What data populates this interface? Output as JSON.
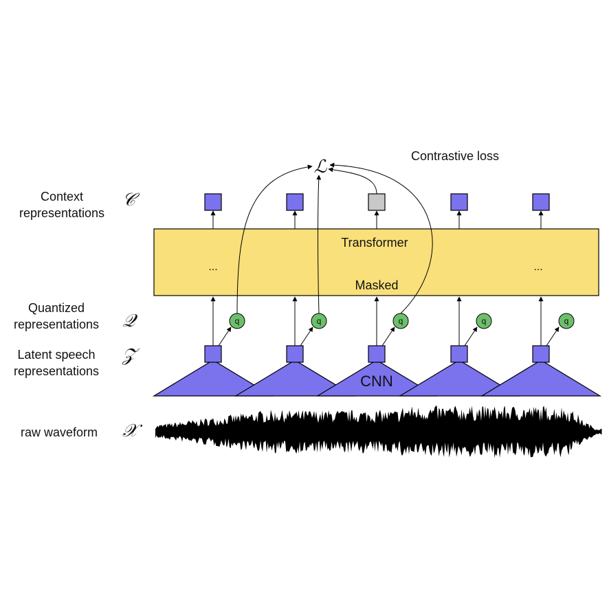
{
  "rows": {
    "context": {
      "label_line1": "Context",
      "label_line2": "representations",
      "symbol": "𝒞"
    },
    "quantized": {
      "label_line1": "Quantized",
      "label_line2": "representations",
      "symbol": "𝒬"
    },
    "latent": {
      "label_line1": "Latent speech",
      "label_line2": "representations",
      "symbol": "𝒵"
    },
    "raw": {
      "label": "raw waveform",
      "symbol": "𝒳"
    }
  },
  "loss": {
    "symbol": "ℒ",
    "label": "Contrastive loss"
  },
  "transformer": {
    "title": "Transformer",
    "masked": "Masked",
    "ellipsis_left": "...",
    "ellipsis_right": "..."
  },
  "cnn": {
    "label": "CNN"
  },
  "quantizer": {
    "label": "q"
  },
  "colors": {
    "context_box": "#7b72ee",
    "masked_box": "#c8c8c8",
    "transformer_fill": "#f9e07a",
    "cnn_fill": "#7b72ee",
    "quantizer_fill": "#6dbf6b",
    "waveform": "#000000"
  }
}
